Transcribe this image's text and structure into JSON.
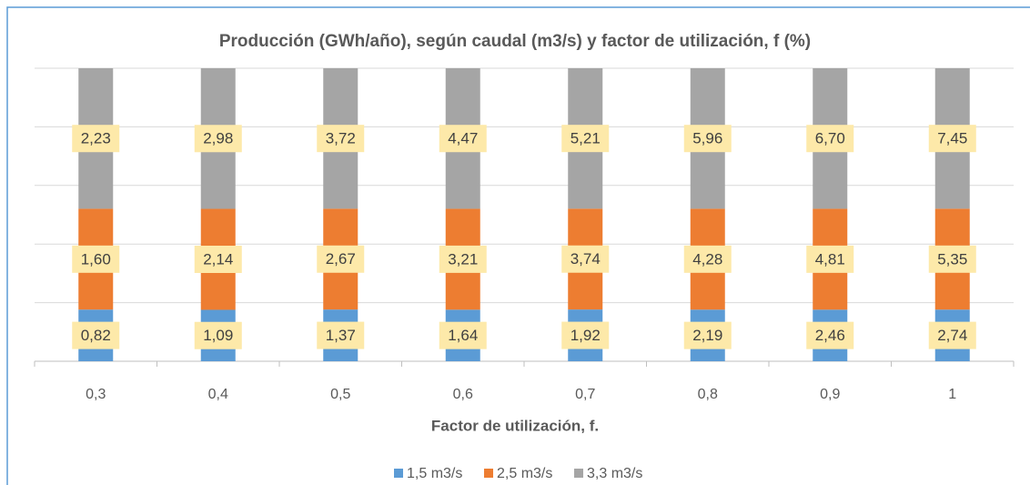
{
  "chart_data": {
    "type": "percent_stacked_bar",
    "title": "Producción (GWh/año), según caudal (m3/s) y factor de utilización, f (%)",
    "x_label": "Factor de utilización, f.",
    "categories": [
      "0,3",
      "0,4",
      "0,5",
      "0,6",
      "0,7",
      "0,8",
      "0,9",
      "1"
    ],
    "series": [
      {
        "name": "1,5 m3/s",
        "color": "#5b9bd5",
        "values": [
          0.82,
          1.09,
          1.37,
          1.64,
          1.92,
          2.19,
          2.46,
          2.74
        ],
        "value_labels": [
          "0,82",
          "1,09",
          "1,37",
          "1,64",
          "1,92",
          "2,19",
          "2,46",
          "2,74"
        ]
      },
      {
        "name": "2,5 m3/s",
        "color": "#ed7d31",
        "values": [
          1.6,
          2.14,
          2.67,
          3.21,
          3.74,
          4.28,
          4.81,
          5.35
        ],
        "value_labels": [
          "1,60",
          "2,14",
          "2,67",
          "3,21",
          "3,74",
          "4,28",
          "4,81",
          "5,35"
        ]
      },
      {
        "name": "3,3 m3/s",
        "color": "#a5a5a5",
        "values": [
          2.23,
          2.98,
          3.72,
          4.47,
          5.21,
          5.96,
          6.7,
          7.45
        ],
        "value_labels": [
          "2,23",
          "2,98",
          "3,72",
          "4,47",
          "5,21",
          "5,96",
          "6,70",
          "7,45"
        ]
      }
    ],
    "ylim": [
      0,
      100
    ],
    "yticks": [
      0,
      20,
      40,
      60,
      80,
      100
    ],
    "grid": true,
    "legend": "bottom",
    "label_color": "#fde9a9"
  }
}
